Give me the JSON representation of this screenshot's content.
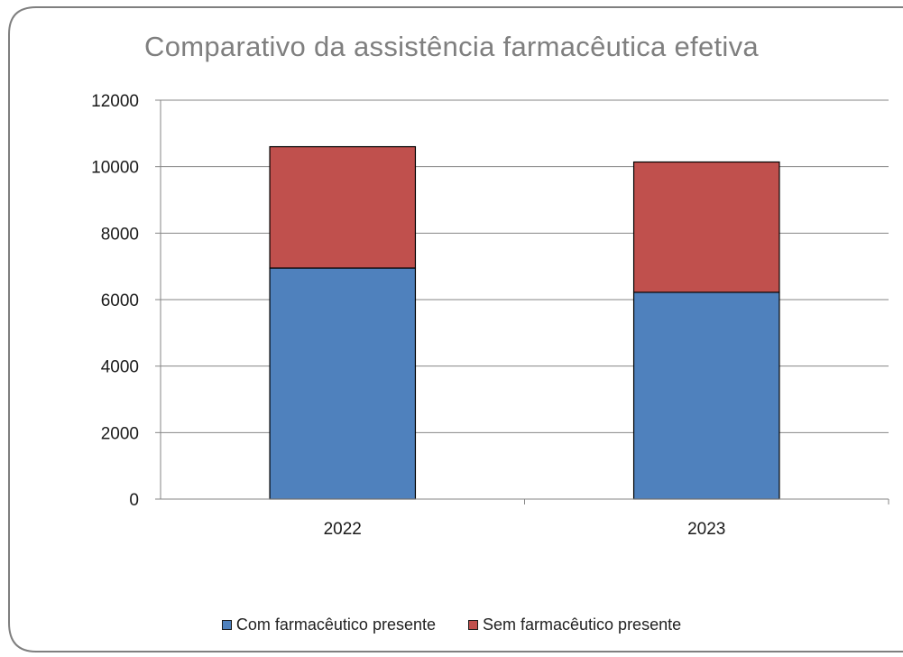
{
  "chart_data": {
    "type": "bar",
    "stacked": true,
    "title": "Comparativo da assistência farmacêutica efetiva",
    "xlabel": "",
    "ylabel": "",
    "categories": [
      "2022",
      "2023"
    ],
    "series": [
      {
        "name": "Com farmacêutico presente",
        "values": [
          6950,
          6220
        ],
        "color": "#4f81bd"
      },
      {
        "name": "Sem farmacêutico presente",
        "values": [
          3650,
          3920
        ],
        "color": "#c0504d"
      }
    ],
    "ylim": [
      0,
      12000
    ],
    "yticks": [
      "0",
      "2000",
      "4000",
      "6000",
      "8000",
      "10000",
      "12000"
    ],
    "grid": true,
    "legend_position": "bottom"
  },
  "colors": {
    "gridline": "#868686",
    "axis": "#868686",
    "frame": "#7f7f7f",
    "bar_outline": "#000000"
  }
}
